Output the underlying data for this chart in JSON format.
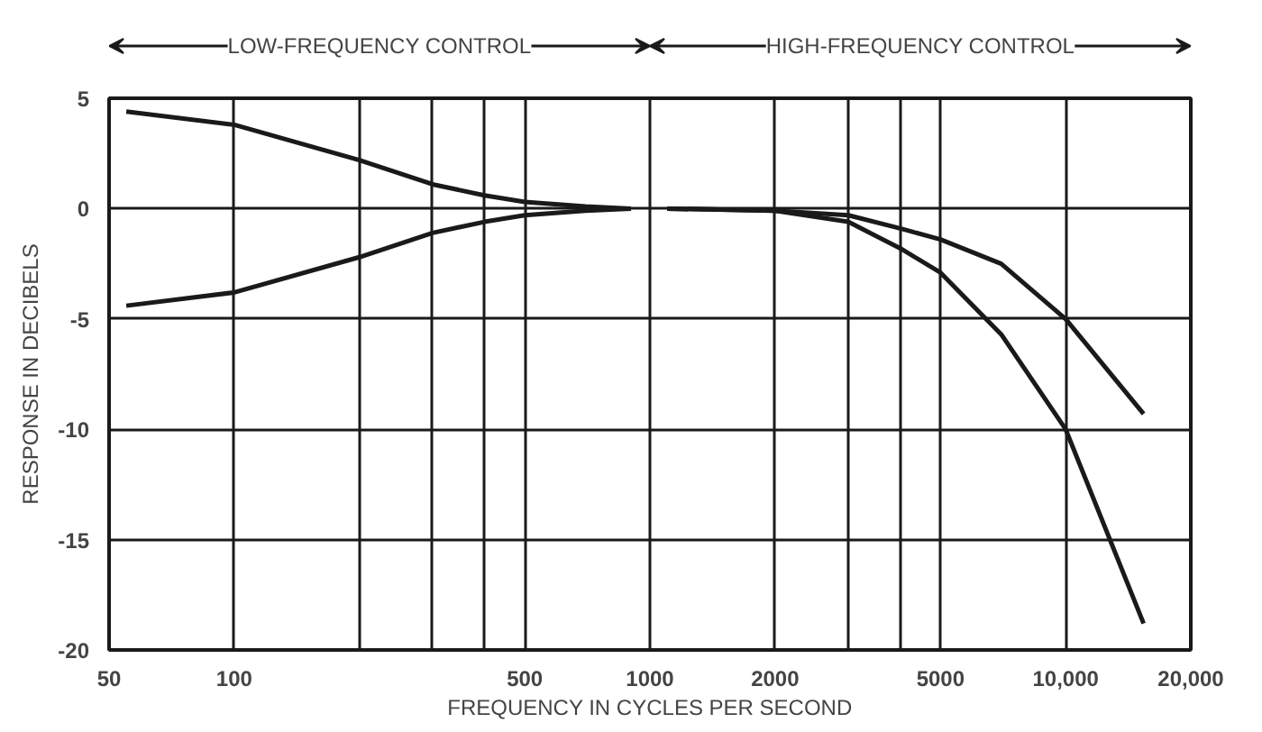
{
  "chart_data": {
    "type": "line",
    "xlabel": "FREQUENCY IN CYCLES PER SECOND",
    "ylabel": "RESPONSE IN DECIBELS",
    "annotations": [
      "LOW-FREQUENCY CONTROL",
      "HIGH-FREQUENCY CONTROL"
    ],
    "log": "x",
    "xlim": [
      50,
      20000
    ],
    "ylim": [
      -20,
      5
    ],
    "xticks": [
      50,
      100,
      {
        "value": 200,
        "label": null
      },
      {
        "value": 300,
        "label": null
      },
      {
        "value": 400,
        "label": null
      },
      500,
      1000,
      2000,
      {
        "value": 3000,
        "label": null
      },
      {
        "value": 4000,
        "label": null
      },
      5000,
      {
        "value": 10000,
        "label": "10,000"
      },
      {
        "value": 20000,
        "label": "20,000"
      }
    ],
    "yticks": [
      5,
      0,
      -5,
      -10,
      -15,
      -20
    ],
    "grid": true,
    "marker": "none",
    "line_style": "solid",
    "series": [
      {
        "color": "#1a1a1a",
        "x": [
          55,
          100,
          200,
          300,
          400,
          500,
          700,
          900
        ],
        "values": [
          4.4,
          3.8,
          2.2,
          1.1,
          0.6,
          0.3,
          0.1,
          0
        ]
      },
      {
        "color": "#1a1a1a",
        "x": [
          55,
          100,
          200,
          300,
          400,
          500,
          700,
          900
        ],
        "values": [
          -4.4,
          -3.8,
          -2.2,
          -1.1,
          -0.6,
          -0.3,
          -0.1,
          0
        ]
      },
      {
        "color": "#1a1a1a",
        "x": [
          1100,
          2000,
          3000,
          4000,
          5000,
          7000,
          10000,
          15400
        ],
        "values": [
          0,
          -0.1,
          -0.3,
          -0.9,
          -1.4,
          -2.5,
          -5,
          -9.3
        ]
      },
      {
        "color": "#1a1a1a",
        "x": [
          1100,
          2000,
          3000,
          4000,
          5000,
          7000,
          10000,
          15400
        ],
        "values": [
          0,
          -0.1,
          -0.6,
          -1.8,
          -2.9,
          -5.7,
          -10,
          -18.8
        ]
      }
    ]
  }
}
